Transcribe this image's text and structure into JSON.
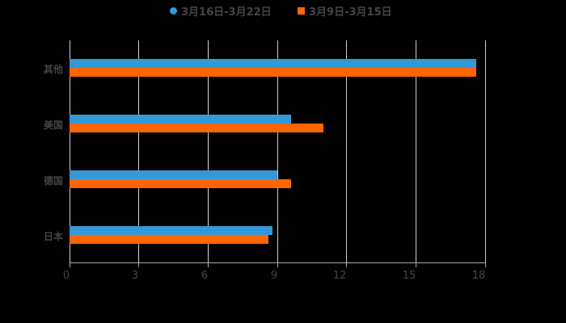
{
  "chart_data": {
    "type": "bar",
    "orientation": "horizontal",
    "title": "",
    "xlabel": "",
    "ylabel": "",
    "xlim": [
      0,
      18
    ],
    "x_ticks": [
      "0",
      "3",
      "6",
      "9",
      "12",
      "15",
      "18"
    ],
    "grid": true,
    "legend_position": "top",
    "categories": [
      "其他",
      "美国",
      "德国",
      "日本"
    ],
    "series": [
      {
        "name": "3月16日-3月22日",
        "color": "#3399d6",
        "marker": "circle",
        "values": [
          17.6,
          9.6,
          9.0,
          8.8
        ]
      },
      {
        "name": "3月9日-3月15日",
        "color": "#ff6600",
        "marker": "square",
        "values": [
          17.6,
          11.0,
          9.6,
          8.6
        ]
      }
    ]
  }
}
